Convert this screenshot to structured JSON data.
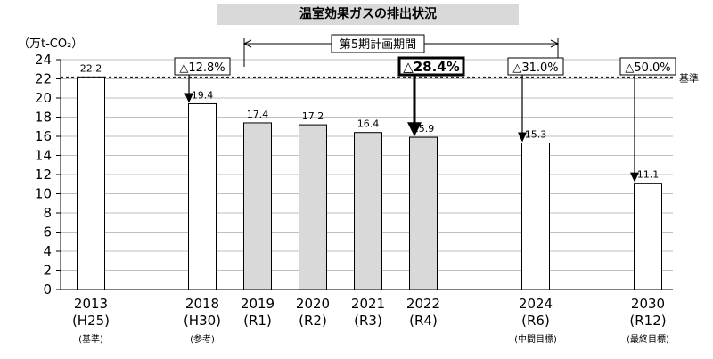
{
  "title": "温室効果ガスの排出状況",
  "unit_label": "（万t-CO₂）",
  "period_label": "第5期計画期間",
  "baseline_label": "基準",
  "chart_data": {
    "type": "bar",
    "title": "温室効果ガスの排出状況",
    "ylabel": "（万t-CO₂）",
    "ylim": [
      0,
      24
    ],
    "yticks": [
      0,
      2,
      4,
      6,
      8,
      10,
      12,
      14,
      16,
      18,
      20,
      22,
      24
    ],
    "grid": true,
    "categories": [
      {
        "year": "2013",
        "era": "(H25)",
        "note": "(基準)"
      },
      {
        "year": "2018",
        "era": "(H30)",
        "note": "(参考)"
      },
      {
        "year": "2019",
        "era": "(R1)",
        "note": ""
      },
      {
        "year": "2020",
        "era": "(R2)",
        "note": ""
      },
      {
        "year": "2021",
        "era": "(R3)",
        "note": ""
      },
      {
        "year": "2022",
        "era": "(R4)",
        "note": ""
      },
      {
        "year": "2024",
        "era": "(R6)",
        "note": "(中間目標)"
      },
      {
        "year": "2030",
        "era": "(R12)",
        "note": "(最終目標)"
      }
    ],
    "values": [
      22.2,
      19.4,
      17.4,
      17.2,
      16.4,
      15.9,
      15.3,
      11.1
    ],
    "value_labels": [
      "22.2",
      "19.4",
      "17.4",
      "17.2",
      "16.4",
      "15.9",
      "15.3",
      "11.1"
    ],
    "bar_styles": [
      "white",
      "white",
      "gray",
      "gray",
      "gray",
      "gray",
      "white",
      "white"
    ],
    "baseline_value": 22.2,
    "reductions": [
      {
        "category_index": 1,
        "label": "△12.8%",
        "bold": false
      },
      {
        "category_index": 5,
        "label": "△28.4%",
        "bold": true
      },
      {
        "category_index": 6,
        "label": "△31.0%",
        "bold": false
      },
      {
        "category_index": 7,
        "label": "△50.0%",
        "bold": false
      }
    ],
    "colors": {
      "gray_bar": "#d9d9d9",
      "white_bar": "#ffffff",
      "grid": "#bfbfbf"
    }
  }
}
